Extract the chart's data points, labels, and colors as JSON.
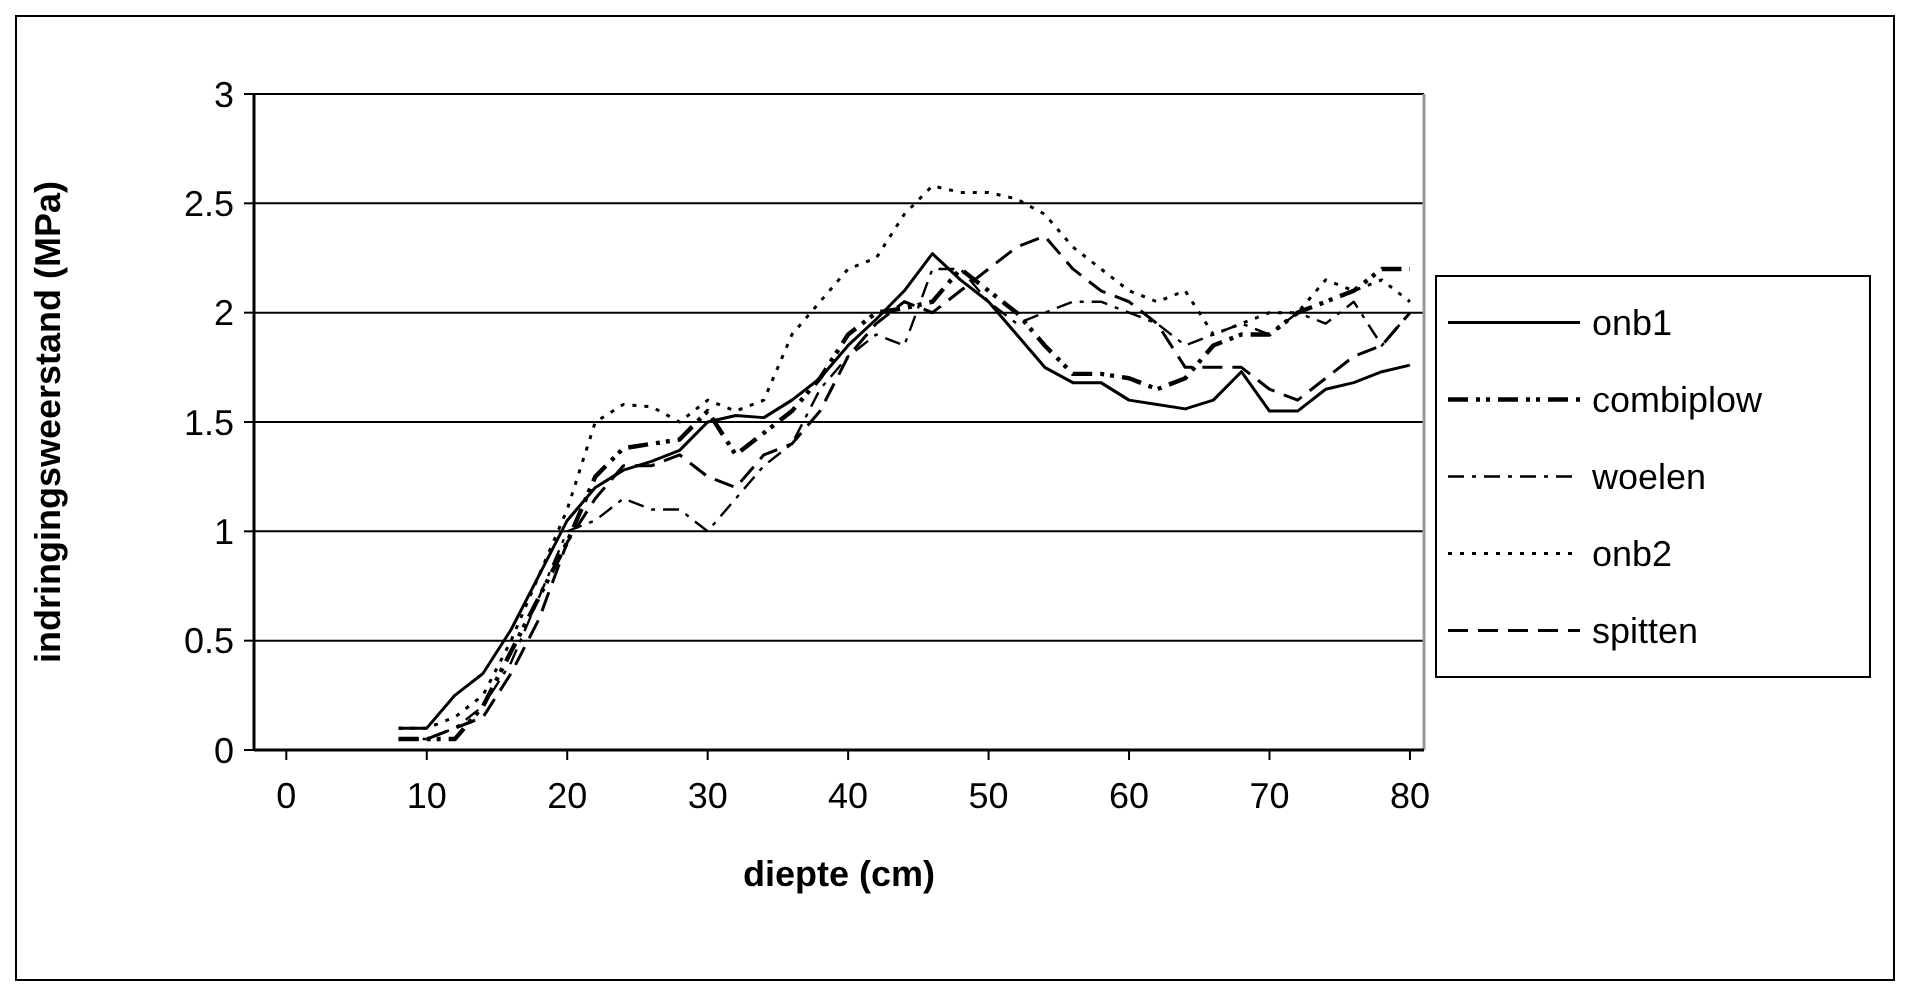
{
  "chart_data": {
    "type": "line",
    "xlabel": "diepte (cm)",
    "ylabel": "indringingsweerstand (MPa)",
    "xlim": [
      -2.3,
      81
    ],
    "xticks": [
      0,
      10,
      20,
      30,
      40,
      50,
      60,
      70,
      80
    ],
    "ylim": [
      0,
      3
    ],
    "yticks": [
      0,
      0.5,
      1,
      1.5,
      2,
      2.5,
      3
    ],
    "grid": "y",
    "legend": "right",
    "marker": "none",
    "x": [
      8,
      10,
      12,
      14,
      16,
      18,
      20,
      22,
      24,
      26,
      28,
      30,
      32,
      34,
      36,
      38,
      40,
      42,
      44,
      46,
      48,
      50,
      52,
      54,
      56,
      58,
      60,
      62,
      64,
      66,
      68,
      70,
      72,
      74,
      76,
      78,
      80
    ],
    "series": [
      {
        "name": "onb1",
        "color": "#000000",
        "line_style": "solid",
        "values": [
          0.1,
          0.1,
          0.25,
          0.35,
          0.55,
          0.8,
          1.05,
          1.2,
          1.28,
          1.32,
          1.37,
          1.5,
          1.53,
          1.52,
          1.6,
          1.7,
          1.85,
          1.97,
          2.1,
          2.27,
          2.15,
          2.05,
          1.9,
          1.75,
          1.68,
          1.68,
          1.6,
          1.58,
          1.56,
          1.6,
          1.73,
          1.55,
          1.55,
          1.65,
          1.68,
          1.73,
          1.76
        ]
      },
      {
        "name": "combiplow",
        "color": "#000000",
        "line_style": "dashdotdot",
        "values": [
          0.05,
          0.05,
          0.05,
          0.2,
          0.45,
          0.7,
          0.95,
          1.25,
          1.38,
          1.4,
          1.42,
          1.55,
          1.35,
          1.45,
          1.55,
          1.7,
          1.9,
          2.0,
          2.02,
          2.05,
          2.2,
          2.1,
          2.0,
          1.85,
          1.72,
          1.72,
          1.7,
          1.65,
          1.7,
          1.85,
          1.9,
          1.9,
          2.0,
          2.05,
          2.1,
          2.2,
          2.2
        ]
      },
      {
        "name": "woelen",
        "color": "#000000",
        "line_style": "dashdot",
        "values": [
          0.05,
          0.05,
          0.1,
          0.2,
          0.4,
          0.7,
          1.0,
          1.05,
          1.15,
          1.1,
          1.1,
          1.0,
          1.15,
          1.3,
          1.4,
          1.65,
          1.8,
          1.9,
          1.85,
          2.2,
          2.2,
          2.05,
          1.95,
          2.0,
          2.05,
          2.05,
          2.0,
          1.95,
          1.85,
          1.9,
          1.95,
          1.9,
          2.0,
          1.95,
          2.05,
          1.85,
          2.0
        ]
      },
      {
        "name": "onb2",
        "color": "#000000",
        "line_style": "dotted",
        "values": [
          0.1,
          0.1,
          0.15,
          0.25,
          0.5,
          0.8,
          1.1,
          1.5,
          1.58,
          1.57,
          1.5,
          1.6,
          1.55,
          1.6,
          1.9,
          2.05,
          2.2,
          2.25,
          2.45,
          2.58,
          2.55,
          2.55,
          2.52,
          2.45,
          2.3,
          2.2,
          2.1,
          2.05,
          2.1,
          1.9,
          1.95,
          2.0,
          2.0,
          2.15,
          2.1,
          2.15,
          2.05
        ]
      },
      {
        "name": "spitten",
        "color": "#000000",
        "line_style": "dashed",
        "values": [
          0.05,
          0.05,
          0.1,
          0.15,
          0.35,
          0.6,
          0.95,
          1.15,
          1.3,
          1.3,
          1.35,
          1.25,
          1.2,
          1.35,
          1.4,
          1.55,
          1.8,
          1.95,
          2.05,
          2.0,
          2.1,
          2.2,
          2.3,
          2.35,
          2.2,
          2.1,
          2.05,
          1.95,
          1.75,
          1.75,
          1.75,
          1.65,
          1.6,
          1.7,
          1.8,
          1.85,
          2.0
        ]
      }
    ]
  }
}
